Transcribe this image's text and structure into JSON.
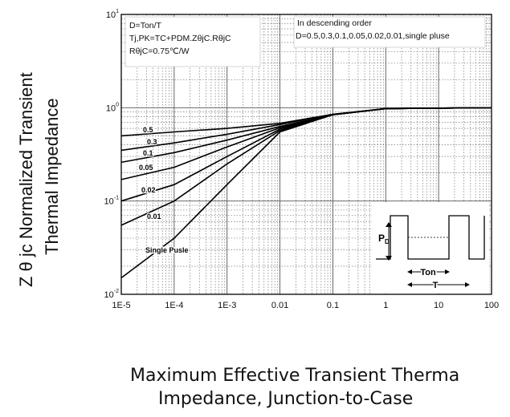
{
  "y_title": {
    "line1": "Z θ jc  Normalized Transient",
    "line2": "Thermal  Impedance"
  },
  "caption": {
    "line1": "Maximum Effective Transient Therma",
    "line2": "Impedance, Junction-to-Case"
  },
  "chart_data": {
    "type": "line",
    "xscale": "log",
    "yscale": "log",
    "xlim": [
      1e-05,
      100
    ],
    "ylim": [
      0.01,
      10
    ],
    "x_tick_labels": [
      "1E-5",
      "1E-4",
      "1E-3",
      "0.01",
      "0.1",
      "1",
      "10",
      "100"
    ],
    "y_tick_labels": [
      {
        "base": "10",
        "exp": "-2"
      },
      {
        "base": "10",
        "exp": "-1"
      },
      {
        "base": "10",
        "exp": "0"
      },
      {
        "base": "10",
        "exp": "1"
      }
    ],
    "grid": true,
    "notes_left": [
      "D=Ton/T",
      "Tj,PK=TC+PDM.ZθjC.RθjC",
      "RθjC=0.75℃/W"
    ],
    "notes_right": [
      "In descending order",
      "D=0.5,0.3,0.1,0.05,0.02,0.01,single pluse"
    ],
    "series": [
      {
        "name": "0.5",
        "x": [
          1e-05,
          0.0001,
          0.001,
          0.01,
          0.1,
          1,
          100
        ],
        "y": [
          0.5,
          0.55,
          0.6,
          0.68,
          0.85,
          0.98,
          1.0
        ]
      },
      {
        "name": "0.3",
        "x": [
          1e-05,
          0.0001,
          0.001,
          0.01,
          0.1,
          1,
          100
        ],
        "y": [
          0.35,
          0.42,
          0.52,
          0.66,
          0.85,
          0.98,
          1.0
        ]
      },
      {
        "name": "0.1",
        "x": [
          1e-05,
          0.0001,
          0.001,
          0.01,
          0.1,
          1,
          100
        ],
        "y": [
          0.26,
          0.33,
          0.45,
          0.63,
          0.84,
          0.98,
          1.0
        ]
      },
      {
        "name": "0.05",
        "x": [
          1e-05,
          0.0001,
          0.001,
          0.01,
          0.1,
          1,
          100
        ],
        "y": [
          0.17,
          0.23,
          0.38,
          0.61,
          0.84,
          0.98,
          1.0
        ]
      },
      {
        "name": "0.02",
        "x": [
          1e-05,
          0.0001,
          0.001,
          0.01,
          0.1,
          1,
          100
        ],
        "y": [
          0.1,
          0.15,
          0.3,
          0.59,
          0.84,
          0.98,
          1.0
        ]
      },
      {
        "name": "0.01",
        "x": [
          1e-05,
          0.0001,
          0.001,
          0.01,
          0.1,
          1,
          100
        ],
        "y": [
          0.055,
          0.1,
          0.25,
          0.57,
          0.84,
          0.98,
          1.0
        ]
      },
      {
        "name": "Single Pusle",
        "x": [
          1e-05,
          0.0001,
          0.001,
          0.01,
          0.1,
          1,
          100
        ],
        "y": [
          0.015,
          0.04,
          0.15,
          0.55,
          0.84,
          0.98,
          1.0
        ]
      }
    ],
    "inset": {
      "pd_label": "PD",
      "ton_label": "Ton",
      "t_label": "T"
    }
  }
}
